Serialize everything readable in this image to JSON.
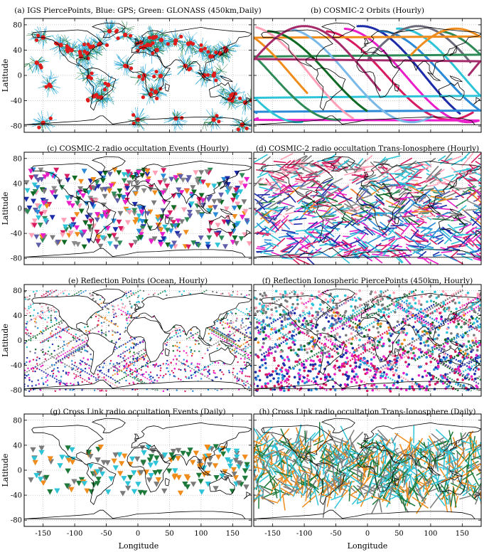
{
  "figure": {
    "xlabel": "Longitude",
    "ylabel": "Latitude",
    "xticks": [
      "-150",
      "-100",
      "-50",
      "0",
      "50",
      "100",
      "150"
    ],
    "yticks": [
      "80",
      "40",
      "0",
      "-40",
      "-80"
    ]
  },
  "colors": {
    "gps_blue": "#2aa7d8",
    "glonass_green": "#1e7a3a",
    "marker_red": "#e01b1b",
    "palette": [
      "#d81b60",
      "#e91ec9",
      "#1c2ba8",
      "#2a8ad8",
      "#2ec4d8",
      "#8a8a8a",
      "#2e8b57",
      "#f08c1c",
      "#ff9fb5",
      "#7a7a7a",
      "#0f6a23",
      "#5e5eaa"
    ]
  },
  "chart_data": [
    {
      "panel": "a",
      "type": "scatter",
      "title": "(a) IGS PiercePoints, Blue: GPS; Green: GLONASS (450km,Daily)",
      "xlim": [
        -180,
        180
      ],
      "ylim": [
        -90,
        90
      ],
      "grid": true,
      "series": [
        {
          "name": "GPS",
          "color": "#2aa7d8"
        },
        {
          "name": "GLONASS",
          "color": "#1e7a3a"
        }
      ],
      "stations_sample": [
        [
          -122,
          48
        ],
        [
          -105,
          40
        ],
        [
          -80,
          35
        ],
        [
          -75,
          45
        ],
        [
          -60,
          50
        ],
        [
          -90,
          30
        ],
        [
          -150,
          60
        ],
        [
          -70,
          -33
        ],
        [
          -58,
          -35
        ],
        [
          -47,
          -15
        ],
        [
          -78,
          -2
        ],
        [
          5,
          52
        ],
        [
          15,
          48
        ],
        [
          25,
          60
        ],
        [
          10,
          45
        ],
        [
          30,
          40
        ],
        [
          37,
          56
        ],
        [
          60,
          55
        ],
        [
          80,
          50
        ],
        [
          100,
          40
        ],
        [
          115,
          30
        ],
        [
          130,
          35
        ],
        [
          140,
          40
        ],
        [
          120,
          0
        ],
        [
          150,
          -30
        ],
        [
          145,
          -38
        ],
        [
          170,
          -43
        ],
        [
          20,
          -30
        ],
        [
          28,
          -26
        ],
        [
          36,
          -1
        ],
        [
          -20,
          64
        ],
        [
          -45,
          70
        ],
        [
          75,
          15
        ],
        [
          105,
          0
        ],
        [
          -160,
          20
        ],
        [
          -140,
          -15
        ],
        [
          0,
          -70
        ],
        [
          60,
          -68
        ],
        [
          120,
          -70
        ],
        [
          -150,
          -75
        ],
        [
          165,
          -78
        ],
        [
          -20,
          15
        ],
        [
          10,
          0
        ]
      ]
    },
    {
      "panel": "b",
      "type": "line",
      "title": "(b) COSMIC-2 Orbits (Hourly)",
      "xlim": [
        -180,
        180
      ],
      "ylim": [
        -90,
        90
      ],
      "grid": true,
      "series_count": 12
    },
    {
      "panel": "c",
      "type": "scatter",
      "title": "(c) COSMIC-2 radio occultation Events (Hourly)",
      "xlim": [
        -180,
        180
      ],
      "ylim": [
        -90,
        90
      ],
      "grid": true,
      "marker": "triangle-down",
      "lat_range": [
        -65,
        65
      ]
    },
    {
      "panel": "d",
      "type": "line",
      "title": "(d) COSMIC-2 radio occultation Trans-Ionosphere (Hourly)",
      "xlim": [
        -180,
        180
      ],
      "ylim": [
        -90,
        90
      ],
      "grid": true
    },
    {
      "panel": "e",
      "type": "scatter",
      "title": "(e) Reflection Points (Ocean, Hourly)",
      "xlim": [
        -180,
        180
      ],
      "ylim": [
        -90,
        90
      ],
      "grid": true
    },
    {
      "panel": "f",
      "type": "scatter",
      "title": "(f) Reflection Ionospheric PiercePoints (450km, Hourly)",
      "xlim": [
        -180,
        180
      ],
      "ylim": [
        -90,
        90
      ],
      "grid": true
    },
    {
      "panel": "g",
      "type": "scatter",
      "title": "(g) Cross Link radio occultation Events (Daily)",
      "xlim": [
        -180,
        180
      ],
      "ylim": [
        -90,
        90
      ],
      "grid": true,
      "marker": "triangle-down",
      "lat_range": [
        -40,
        40
      ],
      "colors_used": [
        "#2ec4d8",
        "#f08c1c",
        "#7a7a7a",
        "#1e7a3a"
      ]
    },
    {
      "panel": "h",
      "type": "line",
      "title": "(h) Cross Link radio occultation Trans-Ionosphere (Daily)",
      "xlim": [
        -180,
        180
      ],
      "ylim": [
        -90,
        90
      ],
      "grid": true,
      "colors_used": [
        "#2ec4d8",
        "#f08c1c",
        "#7a7a7a",
        "#1e7a3a"
      ]
    }
  ]
}
